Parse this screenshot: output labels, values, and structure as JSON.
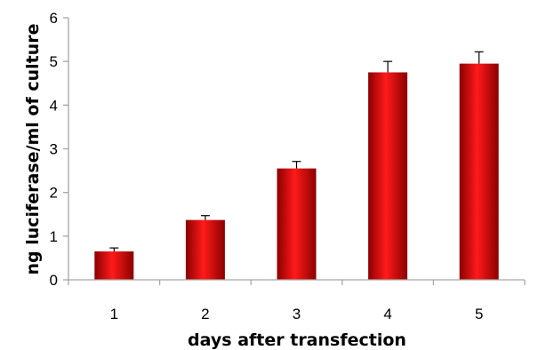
{
  "chart_data": {
    "type": "bar",
    "title": "",
    "xlabel": "days after transfection",
    "ylabel": "ng luciferase/ml of culture",
    "categories": [
      "1",
      "2",
      "3",
      "4",
      "5"
    ],
    "series": [
      {
        "values": [
          0.65,
          1.37,
          2.55,
          4.75,
          4.95
        ],
        "errors": [
          0.08,
          0.1,
          0.16,
          0.25,
          0.27
        ]
      }
    ],
    "ylim": [
      0,
      6
    ],
    "yticks": [
      "0",
      "1",
      "2",
      "3",
      "4",
      "5",
      "6"
    ],
    "grid": false,
    "legend": "none",
    "colors": {
      "bar_dark": "#8b0000",
      "bar_light": "#ff1a1a",
      "axis": "#a6a6a6",
      "error_bar": "#000000"
    }
  }
}
